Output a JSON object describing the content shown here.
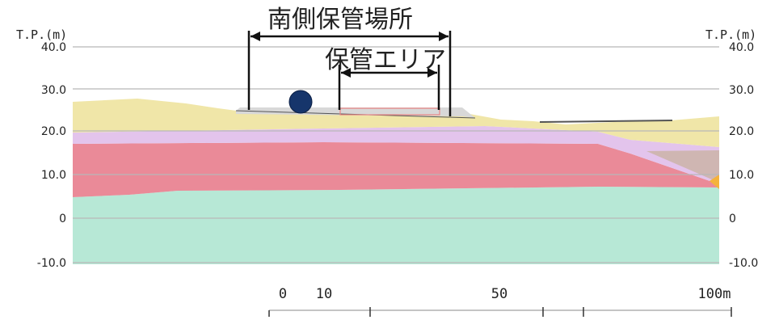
{
  "diagram": {
    "left_axis_label": "T.P.(m)",
    "right_axis_label": "T.P.(m)",
    "y_ticks": [
      "40.0",
      "30.0",
      "20.0",
      "10.0",
      "0",
      "-10.0"
    ],
    "storage_site_label": "南側保管場所",
    "storage_area_label": "保管エリア",
    "x_ticks": [
      "0",
      "10",
      "50",
      "100m"
    ]
  },
  "colors": {
    "gridline": "#b8b8b8",
    "fill_soil_top": "#f0e6a8",
    "fill_layer_lavender": "#e3c4ec",
    "fill_layer_red": "#ea8a98",
    "fill_layer_green": "#b7e8d6",
    "fill_layer_taupe": "#cfb6b2",
    "fill_orange": "#f4b23c",
    "platform_fill": "#d8d8d8",
    "marker": "#16356b",
    "area_outline": "#e88686"
  }
}
